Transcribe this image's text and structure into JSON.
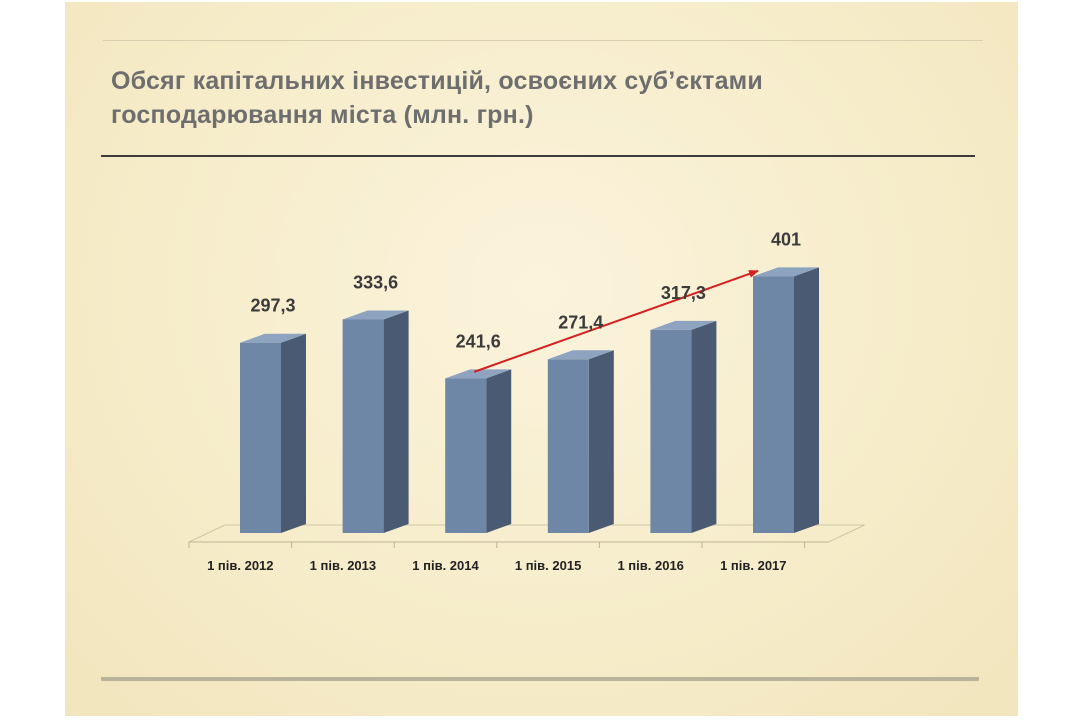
{
  "slide": {
    "title_line1": "Обсяг капітальних інвестицій, освоєних суб’єктами",
    "title_line2": "господарювання міста (млн. грн.)"
  },
  "colors": {
    "bar_front": "#6f87a6",
    "bar_side": "#4a5a72",
    "bar_top": "#8da3bf",
    "arrow": "#d42020",
    "title": "#6e6e6e"
  },
  "chart_data": {
    "type": "bar",
    "title": "Обсяг капітальних інвестицій, освоєних суб’єктами господарювання міста (млн. грн.)",
    "categories": [
      "1 пів. 2012",
      "1 пів. 2013",
      "1 пів. 2014",
      "1 пів. 2015",
      "1 пів. 2016",
      "1 пів. 2017"
    ],
    "values": [
      297.3,
      333.6,
      241.6,
      271.4,
      317.3,
      401
    ],
    "value_labels": [
      "297,3",
      "333,6",
      "241,6",
      "271,4",
      "317,3",
      "401"
    ],
    "style": "3d-column",
    "grid": false,
    "annotations": [
      {
        "type": "arrow",
        "from_category": "1 пів. 2014",
        "to_category": "1 пів. 2017",
        "color": "#d42020"
      }
    ]
  }
}
